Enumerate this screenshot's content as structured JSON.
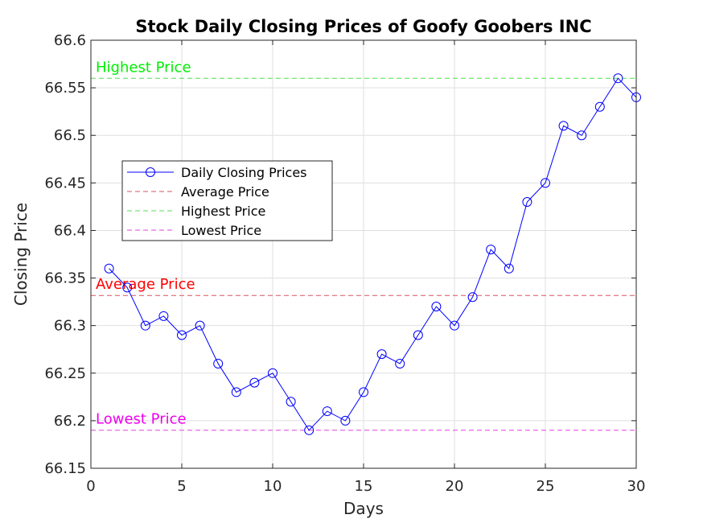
{
  "chart_data": {
    "type": "line",
    "title": "Stock Daily Closing Prices of Goofy Goobers INC",
    "xlabel": "Days",
    "ylabel": "Closing Price",
    "xlim": [
      0,
      30
    ],
    "ylim": [
      66.15,
      66.6
    ],
    "xticks": [
      0,
      5,
      10,
      15,
      20,
      25,
      30
    ],
    "xtick_labels": [
      "0",
      "5",
      "10",
      "15",
      "20",
      "25",
      "30"
    ],
    "yticks": [
      66.15,
      66.2,
      66.25,
      66.3,
      66.35,
      66.4,
      66.45,
      66.5,
      66.55,
      66.6
    ],
    "ytick_labels": [
      "66.15",
      "66.2",
      "66.25",
      "66.3",
      "66.35",
      "66.4",
      "66.45",
      "66.5",
      "66.55",
      "66.6"
    ],
    "grid": true,
    "legend_position": "upper-left",
    "series": [
      {
        "name": "Daily Closing Prices",
        "color": "#0000ff",
        "marker": "circle",
        "x": [
          1,
          2,
          3,
          4,
          5,
          6,
          7,
          8,
          9,
          10,
          11,
          12,
          13,
          14,
          15,
          16,
          17,
          18,
          19,
          20,
          21,
          22,
          23,
          24,
          25,
          26,
          27,
          28,
          29,
          30
        ],
        "y": [
          66.36,
          66.34,
          66.3,
          66.31,
          66.29,
          66.3,
          66.26,
          66.23,
          66.24,
          66.25,
          66.22,
          66.19,
          66.21,
          66.2,
          66.23,
          66.27,
          66.26,
          66.29,
          66.32,
          66.3,
          66.33,
          66.38,
          66.36,
          66.43,
          66.45,
          66.51,
          66.5,
          66.53,
          66.56,
          66.54
        ]
      }
    ],
    "reference_lines": [
      {
        "name": "Average Price",
        "label": "Average Price",
        "value": 66.3317,
        "color": "#d9545e",
        "text_color": "#ff0000"
      },
      {
        "name": "Highest Price",
        "label": "Highest Price",
        "value": 66.56,
        "color": "#4fe04f",
        "text_color": "#00ee00"
      },
      {
        "name": "Lowest Price",
        "label": "Lowest Price",
        "value": 66.19,
        "color": "#e040e0",
        "text_color": "#ee00ee"
      }
    ]
  }
}
